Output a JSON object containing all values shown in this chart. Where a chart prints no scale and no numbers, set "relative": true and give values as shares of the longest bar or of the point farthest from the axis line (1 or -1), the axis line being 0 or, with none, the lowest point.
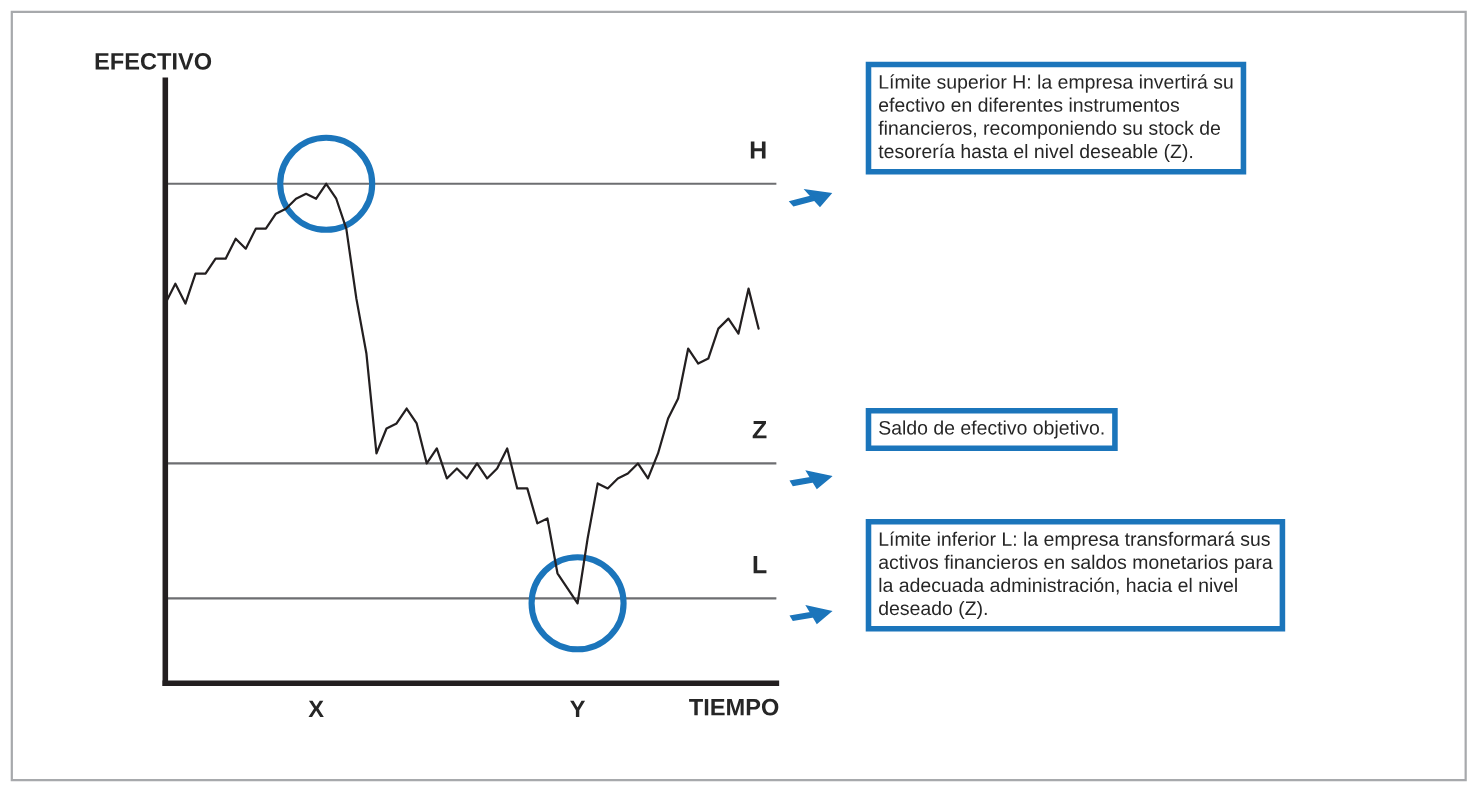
{
  "chart_data": {
    "type": "line",
    "relative": true,
    "ylabel": "EFECTIVO",
    "xlabel": "TIEMPO",
    "categories": [
      null,
      null,
      null,
      null,
      null,
      null,
      null,
      null,
      null,
      null,
      null,
      null,
      null,
      null,
      null,
      "X",
      null,
      null,
      null,
      null,
      null,
      null,
      null,
      null,
      null,
      null,
      null,
      null,
      null,
      null,
      null,
      null,
      null,
      null,
      null,
      null,
      null,
      null,
      null,
      null,
      null,
      "Y",
      null,
      null,
      null,
      null,
      null,
      null,
      null,
      null,
      null,
      null,
      null,
      null,
      null,
      null,
      null,
      null,
      null,
      null
    ],
    "series": [
      {
        "color": "#231f20",
        "values": [
          0.76,
          0.8,
          0.76,
          0.82,
          0.82,
          0.85,
          0.85,
          0.89,
          0.87,
          0.91,
          0.91,
          0.94,
          0.95,
          0.97,
          0.98,
          0.97,
          1.0,
          0.97,
          0.91,
          0.77,
          0.66,
          0.46,
          0.51,
          0.52,
          0.55,
          0.52,
          0.44,
          0.47,
          0.41,
          0.43,
          0.41,
          0.44,
          0.41,
          0.43,
          0.47,
          0.39,
          0.39,
          0.32,
          0.33,
          0.22,
          0.19,
          0.16,
          0.29,
          0.4,
          0.39,
          0.41,
          0.42,
          0.44,
          0.41,
          0.46,
          0.53,
          0.57,
          0.67,
          0.64,
          0.65,
          0.71,
          0.73,
          0.7,
          0.79,
          0.71
        ]
      }
    ],
    "ref_lines": [
      {
        "axis": "y",
        "value": 1.0,
        "label": "H",
        "color": "#6d6e71"
      },
      {
        "axis": "y",
        "value": 0.44,
        "label": "Z",
        "color": "#6d6e71"
      },
      {
        "axis": "y",
        "value": 0.17,
        "label": "L",
        "color": "#6d6e71"
      }
    ],
    "annotations": [
      "Límite superior H: la empresa invertirá su\nefectivo en diferentes instrumentos\nfinancieros, recomponiendo su stock de\ntesorería hasta el nivel deseable (Z).",
      "Saldo de efectivo objetivo.",
      "Límite inferior L: la empresa transformará sus\nactivos financieros en saldos monetarios para\nla adecuada administración, hacia el nivel\ndeseado (Z)."
    ]
  }
}
